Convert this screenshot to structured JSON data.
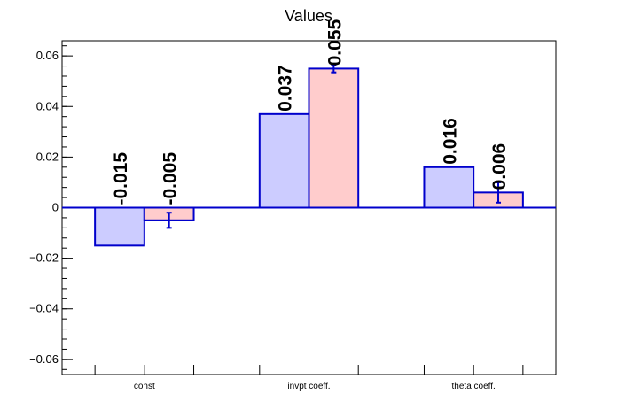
{
  "chart_data": {
    "type": "bar",
    "title": "Values",
    "xlabel": "",
    "ylabel": "",
    "categories": [
      "const",
      "invpt coeff.",
      "theta coeff."
    ],
    "series": [
      {
        "color": "#ccccff",
        "values": [
          -0.015,
          0.037,
          0.016
        ],
        "labels": [
          "-0.015",
          "0.037",
          "0.016"
        ],
        "errors": [
          0,
          0,
          0
        ]
      },
      {
        "color": "#ffcccc",
        "values": [
          -0.005,
          0.055,
          0.006
        ],
        "labels": [
          "-0.005",
          "0.055",
          "0.006"
        ],
        "errors": [
          0.003,
          0.0015,
          0.004
        ]
      }
    ],
    "ylim": [
      -0.066,
      0.066
    ],
    "yticks": [
      -0.06,
      -0.04,
      -0.02,
      0,
      0.02,
      0.04,
      0.06
    ],
    "ytick_labels": [
      "−0.06",
      "−0.04",
      "−0.02",
      "0",
      "0.02",
      "0.04",
      "0.06"
    ],
    "grid": false,
    "bar_edge_color": "#0000cc"
  }
}
